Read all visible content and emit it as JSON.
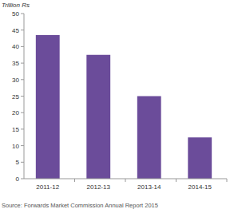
{
  "chart_data": {
    "type": "bar",
    "y_label": "Trillion Rs",
    "categories": [
      "2011-12",
      "2012-13",
      "2013-14",
      "2014-15"
    ],
    "values": [
      43.5,
      37.5,
      25,
      12.5
    ],
    "color": "#6b4c9a",
    "ylim": [
      0,
      50
    ],
    "yticks": [
      0,
      5,
      10,
      15,
      20,
      25,
      30,
      35,
      40,
      45,
      50
    ],
    "grid": false,
    "source": "Source: Forwards Market Commission Annual Report 2015"
  }
}
